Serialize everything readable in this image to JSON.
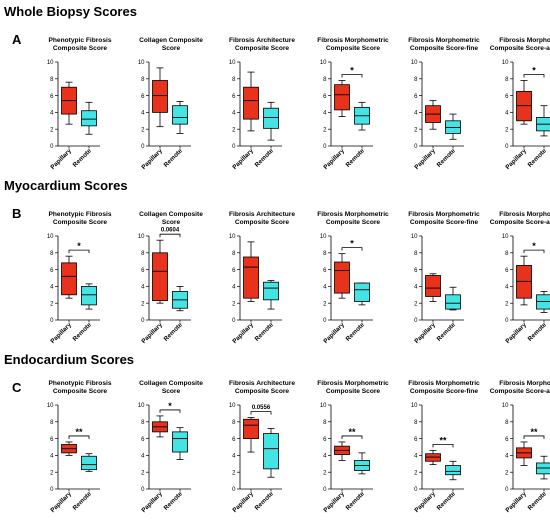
{
  "figure": {
    "sections": [
      {
        "heading": "Whole Biopsy Scores",
        "panel_letter": "A"
      },
      {
        "heading": "Myocardium Scores",
        "panel_letter": "B"
      },
      {
        "heading": "Endocardium Scores",
        "panel_letter": "C"
      }
    ]
  },
  "chart_data": [
    {
      "type": "boxplot",
      "section": "A",
      "title": [
        "Phenotypic Fibrosis",
        "Composite Score"
      ],
      "categories": [
        "Papillary",
        "Remote"
      ],
      "ylim": [
        0,
        10
      ],
      "yticks": [
        0,
        2,
        4,
        6,
        8,
        10
      ],
      "boxes": [
        {
          "min": 2.6,
          "q1": 3.8,
          "median": 5.4,
          "q3": 7.0,
          "max": 7.6
        },
        {
          "min": 1.4,
          "q1": 2.4,
          "median": 3.2,
          "q3": 4.2,
          "max": 5.2
        }
      ],
      "annotation": null
    },
    {
      "type": "boxplot",
      "section": "A",
      "title": [
        "Collagen Composite",
        "Score"
      ],
      "categories": [
        "Papillary",
        "Remote"
      ],
      "ylim": [
        0,
        10
      ],
      "yticks": [
        0,
        2,
        4,
        6,
        8,
        10
      ],
      "boxes": [
        {
          "min": 2.3,
          "q1": 4.0,
          "median": 6.0,
          "q3": 7.8,
          "max": 9.3
        },
        {
          "min": 1.5,
          "q1": 2.6,
          "median": 3.4,
          "q3": 4.8,
          "max": 5.3
        }
      ],
      "annotation": null
    },
    {
      "type": "boxplot",
      "section": "A",
      "title": [
        "Fibrosis Architecture",
        "Composite Score"
      ],
      "categories": [
        "Papillary",
        "Remote"
      ],
      "ylim": [
        0,
        10
      ],
      "yticks": [
        0,
        2,
        4,
        6,
        8,
        10
      ],
      "boxes": [
        {
          "min": 1.8,
          "q1": 3.2,
          "median": 5.4,
          "q3": 7.0,
          "max": 8.8
        },
        {
          "min": 0.7,
          "q1": 2.1,
          "median": 3.4,
          "q3": 4.5,
          "max": 5.2
        }
      ],
      "annotation": null
    },
    {
      "type": "boxplot",
      "section": "A",
      "title": [
        "Fibrosis Morphometric",
        "Composite Score"
      ],
      "categories": [
        "Papillary",
        "Remote"
      ],
      "ylim": [
        0,
        10
      ],
      "yticks": [
        0,
        2,
        4,
        6,
        8,
        10
      ],
      "boxes": [
        {
          "min": 3.5,
          "q1": 4.3,
          "median": 6.1,
          "q3": 7.3,
          "max": 7.8
        },
        {
          "min": 1.9,
          "q1": 2.6,
          "median": 3.6,
          "q3": 4.6,
          "max": 5.2
        }
      ],
      "annotation": "*"
    },
    {
      "type": "boxplot",
      "section": "A",
      "title": [
        "Fibrosis Morphometric",
        "Composite Score-fine"
      ],
      "categories": [
        "Papillary",
        "Remote"
      ],
      "ylim": [
        0,
        10
      ],
      "yticks": [
        0,
        2,
        4,
        6,
        8,
        10
      ],
      "boxes": [
        {
          "min": 2.0,
          "q1": 2.8,
          "median": 3.8,
          "q3": 4.8,
          "max": 5.4
        },
        {
          "min": 0.8,
          "q1": 1.5,
          "median": 2.2,
          "q3": 3.0,
          "max": 3.8
        }
      ],
      "annotation": null
    },
    {
      "type": "boxplot",
      "section": "A",
      "title": [
        "Fibrosis Morphometric",
        "Composite Score-assembled"
      ],
      "categories": [
        "Papillary",
        "Remote"
      ],
      "ylim": [
        0,
        10
      ],
      "yticks": [
        0,
        2,
        4,
        6,
        8,
        10
      ],
      "boxes": [
        {
          "min": 2.6,
          "q1": 3.0,
          "median": 4.8,
          "q3": 6.5,
          "max": 7.8
        },
        {
          "min": 1.2,
          "q1": 1.8,
          "median": 2.6,
          "q3": 3.4,
          "max": 4.8
        }
      ],
      "annotation": "*"
    },
    {
      "type": "boxplot",
      "section": "B",
      "title": [
        "Phenotypic Fibrosis",
        "Composite Score"
      ],
      "categories": [
        "Papillary",
        "Remote"
      ],
      "ylim": [
        0,
        10
      ],
      "yticks": [
        0,
        2,
        4,
        6,
        8,
        10
      ],
      "boxes": [
        {
          "min": 2.6,
          "q1": 3.0,
          "median": 5.2,
          "q3": 6.8,
          "max": 7.6
        },
        {
          "min": 1.3,
          "q1": 1.8,
          "median": 3.0,
          "q3": 4.0,
          "max": 4.3
        }
      ],
      "annotation": "*"
    },
    {
      "type": "boxplot",
      "section": "B",
      "title": [
        "Collagen Composite",
        "Score"
      ],
      "categories": [
        "Papillary",
        "Remote"
      ],
      "ylim": [
        0,
        10
      ],
      "yticks": [
        0,
        2,
        4,
        6,
        8,
        10
      ],
      "boxes": [
        {
          "min": 2.0,
          "q1": 2.3,
          "median": 5.8,
          "q3": 8.0,
          "max": 9.5
        },
        {
          "min": 1.1,
          "q1": 1.4,
          "median": 2.4,
          "q3": 3.4,
          "max": 4.0
        }
      ],
      "annotation": "0.0604"
    },
    {
      "type": "boxplot",
      "section": "B",
      "title": [
        "Fibrosis Architecture",
        "Composite Score"
      ],
      "categories": [
        "Papillary",
        "Remote"
      ],
      "ylim": [
        0,
        10
      ],
      "yticks": [
        0,
        2,
        4,
        6,
        8,
        10
      ],
      "boxes": [
        {
          "min": 2.2,
          "q1": 2.6,
          "median": 6.3,
          "q3": 7.5,
          "max": 9.3
        },
        {
          "min": 1.3,
          "q1": 2.4,
          "median": 3.8,
          "q3": 4.5,
          "max": 4.7
        }
      ],
      "annotation": null
    },
    {
      "type": "boxplot",
      "section": "B",
      "title": [
        "Fibrosis Morphometric",
        "Composite Score"
      ],
      "categories": [
        "Papillary",
        "Remote"
      ],
      "ylim": [
        0,
        10
      ],
      "yticks": [
        0,
        2,
        4,
        6,
        8,
        10
      ],
      "boxes": [
        {
          "min": 2.6,
          "q1": 3.2,
          "median": 5.9,
          "q3": 6.9,
          "max": 7.9
        },
        {
          "min": 1.8,
          "q1": 2.2,
          "median": 3.6,
          "q3": 4.4,
          "max": 4.4
        }
      ],
      "annotation": "*"
    },
    {
      "type": "boxplot",
      "section": "B",
      "title": [
        "Fibrosis Morphometric",
        "Composite Score-fine"
      ],
      "categories": [
        "Papillary",
        "Remote"
      ],
      "ylim": [
        0,
        10
      ],
      "yticks": [
        0,
        2,
        4,
        6,
        8,
        10
      ],
      "boxes": [
        {
          "min": 2.2,
          "q1": 2.8,
          "median": 3.8,
          "q3": 5.3,
          "max": 5.5
        },
        {
          "min": 1.2,
          "q1": 1.3,
          "median": 2.0,
          "q3": 3.0,
          "max": 3.9
        }
      ],
      "annotation": null
    },
    {
      "type": "boxplot",
      "section": "B",
      "title": [
        "Fibrosis Morphometric",
        "Composite Score-assembled"
      ],
      "categories": [
        "Papillary",
        "Remote"
      ],
      "ylim": [
        0,
        10
      ],
      "yticks": [
        0,
        2,
        4,
        6,
        8,
        10
      ],
      "boxes": [
        {
          "min": 1.8,
          "q1": 2.6,
          "median": 4.6,
          "q3": 6.5,
          "max": 7.6
        },
        {
          "min": 0.9,
          "q1": 1.3,
          "median": 2.2,
          "q3": 3.0,
          "max": 3.4
        }
      ],
      "annotation": "*"
    },
    {
      "type": "boxplot",
      "section": "C",
      "title": [
        "Phenotypic Fibrosis",
        "Composite Score"
      ],
      "categories": [
        "Papillary",
        "Remote"
      ],
      "ylim": [
        0,
        10
      ],
      "yticks": [
        0,
        2,
        4,
        6,
        8,
        10
      ],
      "boxes": [
        {
          "min": 4.0,
          "q1": 4.3,
          "median": 4.8,
          "q3": 5.3,
          "max": 5.6
        },
        {
          "min": 2.1,
          "q1": 2.3,
          "median": 2.9,
          "q3": 3.9,
          "max": 4.2
        }
      ],
      "annotation": "**"
    },
    {
      "type": "boxplot",
      "section": "C",
      "title": [
        "Collagen Composite",
        "Score"
      ],
      "categories": [
        "Papillary",
        "Remote"
      ],
      "ylim": [
        0,
        10
      ],
      "yticks": [
        0,
        2,
        4,
        6,
        8,
        10
      ],
      "boxes": [
        {
          "min": 6.2,
          "q1": 6.8,
          "median": 7.4,
          "q3": 8.0,
          "max": 8.7
        },
        {
          "min": 3.5,
          "q1": 4.4,
          "median": 6.0,
          "q3": 6.8,
          "max": 7.3
        }
      ],
      "annotation": "*"
    },
    {
      "type": "boxplot",
      "section": "C",
      "title": [
        "Fibrosis Architecture",
        "Composite Score"
      ],
      "categories": [
        "Papillary",
        "Remote"
      ],
      "ylim": [
        0,
        10
      ],
      "yticks": [
        0,
        2,
        4,
        6,
        8,
        10
      ],
      "boxes": [
        {
          "min": 4.4,
          "q1": 6.0,
          "median": 7.6,
          "q3": 8.3,
          "max": 8.5
        },
        {
          "min": 1.4,
          "q1": 2.4,
          "median": 4.8,
          "q3": 6.6,
          "max": 7.2
        }
      ],
      "annotation": "0.0556"
    },
    {
      "type": "boxplot",
      "section": "C",
      "title": [
        "Fibrosis Morphometric",
        "Composite Score"
      ],
      "categories": [
        "Papillary",
        "Remote"
      ],
      "ylim": [
        0,
        10
      ],
      "yticks": [
        0,
        2,
        4,
        6,
        8,
        10
      ],
      "boxes": [
        {
          "min": 3.4,
          "q1": 4.1,
          "median": 4.6,
          "q3": 5.1,
          "max": 5.6
        },
        {
          "min": 1.8,
          "q1": 2.2,
          "median": 2.8,
          "q3": 3.4,
          "max": 4.3
        }
      ],
      "annotation": "**"
    },
    {
      "type": "boxplot",
      "section": "C",
      "title": [
        "Fibrosis Morphometric",
        "Composite Score-fine"
      ],
      "categories": [
        "Papillary",
        "Remote"
      ],
      "ylim": [
        0,
        10
      ],
      "yticks": [
        0,
        2,
        4,
        6,
        8,
        10
      ],
      "boxes": [
        {
          "min": 2.9,
          "q1": 3.3,
          "median": 3.8,
          "q3": 4.2,
          "max": 4.6
        },
        {
          "min": 1.1,
          "q1": 1.7,
          "median": 2.1,
          "q3": 2.8,
          "max": 3.3
        }
      ],
      "annotation": "**"
    },
    {
      "type": "boxplot",
      "section": "C",
      "title": [
        "Fibrosis Morphometric",
        "Composite Score-assembled"
      ],
      "categories": [
        "Papillary",
        "Remote"
      ],
      "ylim": [
        0,
        10
      ],
      "yticks": [
        0,
        2,
        4,
        6,
        8,
        10
      ],
      "boxes": [
        {
          "min": 2.8,
          "q1": 3.7,
          "median": 4.3,
          "q3": 4.9,
          "max": 5.6
        },
        {
          "min": 1.2,
          "q1": 1.8,
          "median": 2.5,
          "q3": 3.1,
          "max": 3.9
        }
      ],
      "annotation": "**"
    }
  ],
  "colors": {
    "papillary_fill": "#e8331c",
    "remote_fill": "#45e3e3",
    "stroke": "#000000",
    "text": "#000000"
  }
}
